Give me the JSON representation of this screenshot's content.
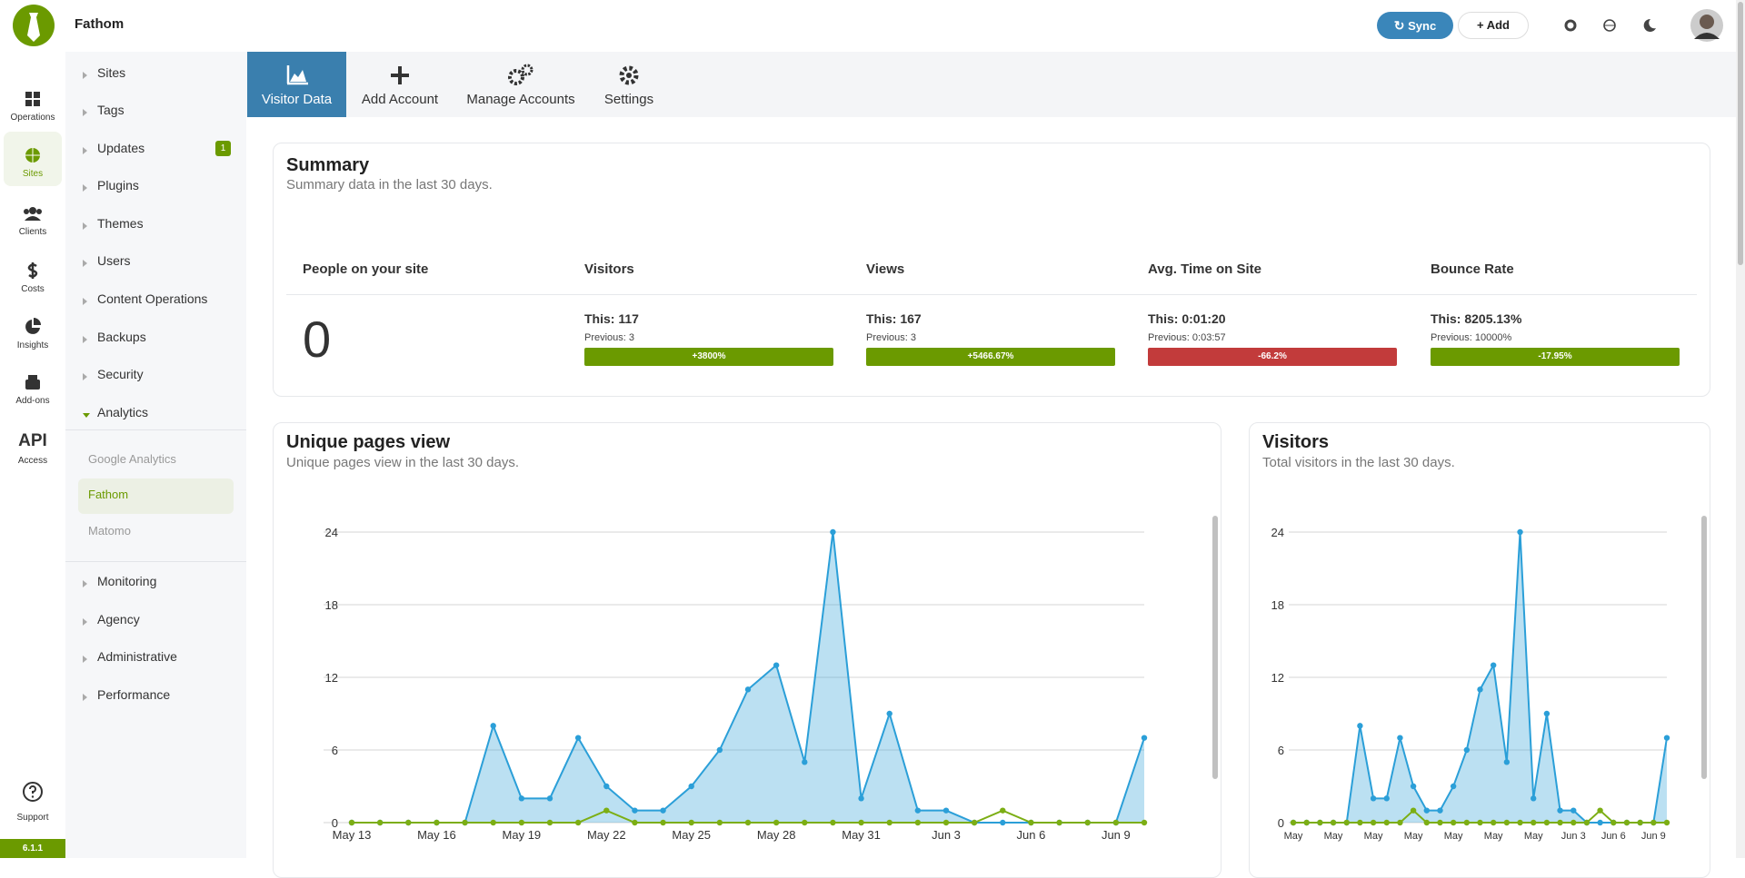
{
  "app": {
    "name": "Fathom",
    "version": "6.1.1"
  },
  "topbar": {
    "sync": "Sync",
    "add": "Add"
  },
  "rail": [
    {
      "label": "Operations"
    },
    {
      "label": "Sites"
    },
    {
      "label": "Clients"
    },
    {
      "label": "Costs"
    },
    {
      "label": "Insights"
    },
    {
      "label": "Add-ons"
    },
    {
      "title": "API",
      "label": "Access"
    }
  ],
  "rail_bottom": {
    "label": "Support"
  },
  "sidebar": {
    "items": [
      {
        "label": "Sites"
      },
      {
        "label": "Tags"
      },
      {
        "label": "Updates",
        "badge": "1"
      },
      {
        "label": "Plugins"
      },
      {
        "label": "Themes"
      },
      {
        "label": "Users"
      },
      {
        "label": "Content Operations"
      },
      {
        "label": "Backups"
      },
      {
        "label": "Security"
      },
      {
        "label": "Analytics"
      }
    ],
    "sub_items": [
      {
        "label": "Google Analytics"
      },
      {
        "label": "Fathom"
      },
      {
        "label": "Matomo"
      }
    ],
    "more_items": [
      {
        "label": "Monitoring"
      },
      {
        "label": "Agency"
      },
      {
        "label": "Administrative"
      },
      {
        "label": "Performance"
      }
    ]
  },
  "tabs": [
    {
      "label": "Visitor Data"
    },
    {
      "label": "Add Account"
    },
    {
      "label": "Manage Accounts"
    },
    {
      "label": "Settings"
    }
  ],
  "summary": {
    "title": "Summary",
    "subtitle": "Summary data in the last 30 days.",
    "people": {
      "label": "People on your site",
      "value": "0"
    },
    "metrics": [
      {
        "label": "Visitors",
        "this": "This: 117",
        "previous": "Previous: 3",
        "change": "+3800%",
        "color": "#6b9a00"
      },
      {
        "label": "Views",
        "this": "This: 167",
        "previous": "Previous: 3",
        "change": "+5466.67%",
        "color": "#6b9a00"
      },
      {
        "label": "Avg. Time on Site",
        "this": "This: 0:01:20",
        "previous": "Previous: 0:03:57",
        "change": "-66.2%",
        "color": "#c23b3b"
      },
      {
        "label": "Bounce Rate",
        "this": "This: 8205.13%",
        "previous": "Previous: 10000%",
        "change": "-17.95%",
        "color": "#6b9a00"
      }
    ]
  },
  "chart_data": [
    {
      "type": "line",
      "title": "Unique pages view",
      "subtitle": "Unique pages view in the last 30 days.",
      "categories": [
        "May 13",
        null,
        null,
        "May 16",
        null,
        null,
        "May 19",
        null,
        null,
        "May 22",
        null,
        null,
        "May 25",
        null,
        null,
        "May 28",
        null,
        null,
        "May 31",
        null,
        null,
        "Jun 3",
        null,
        null,
        "Jun 6",
        null,
        null,
        "Jun 9",
        null
      ],
      "series": [
        {
          "color": "#2b9fd8",
          "area": true,
          "values": [
            0,
            0,
            0,
            0,
            0,
            8,
            2,
            2,
            7,
            3,
            1,
            1,
            3,
            6,
            11,
            13,
            5,
            24,
            2,
            9,
            1,
            1,
            0,
            0,
            0,
            0,
            0,
            0,
            7
          ]
        },
        {
          "color": "#7cae14",
          "area": false,
          "values": [
            0,
            0,
            0,
            0,
            0,
            0,
            0,
            0,
            0,
            1,
            0,
            0,
            0,
            0,
            0,
            0,
            0,
            0,
            0,
            0,
            0,
            0,
            0,
            1,
            0,
            0,
            0,
            0,
            0
          ]
        }
      ],
      "ylim": [
        0,
        24
      ],
      "yticks": [
        0,
        6,
        12,
        18,
        24
      ],
      "grid": true
    },
    {
      "type": "line",
      "title": "Visitors",
      "subtitle": "Total visitors in the last 30 days.",
      "categories": [
        "May",
        null,
        null,
        "May",
        null,
        null,
        "May",
        null,
        null,
        "May",
        null,
        null,
        "May",
        null,
        null,
        "May",
        null,
        null,
        "May",
        null,
        null,
        "Jun 3",
        null,
        null,
        "Jun 6",
        null,
        null,
        "Jun 9",
        null
      ],
      "series": [
        {
          "color": "#2b9fd8",
          "area": true,
          "values": [
            0,
            0,
            0,
            0,
            0,
            8,
            2,
            2,
            7,
            3,
            1,
            1,
            3,
            6,
            11,
            13,
            5,
            24,
            2,
            9,
            1,
            1,
            0,
            0,
            0,
            0,
            0,
            0,
            7
          ]
        },
        {
          "color": "#7cae14",
          "area": false,
          "values": [
            0,
            0,
            0,
            0,
            0,
            0,
            0,
            0,
            0,
            1,
            0,
            0,
            0,
            0,
            0,
            0,
            0,
            0,
            0,
            0,
            0,
            0,
            0,
            1,
            0,
            0,
            0,
            0,
            0
          ]
        }
      ],
      "ylim": [
        0,
        24
      ],
      "yticks": [
        0,
        6,
        12,
        18,
        24
      ],
      "grid": true
    }
  ]
}
